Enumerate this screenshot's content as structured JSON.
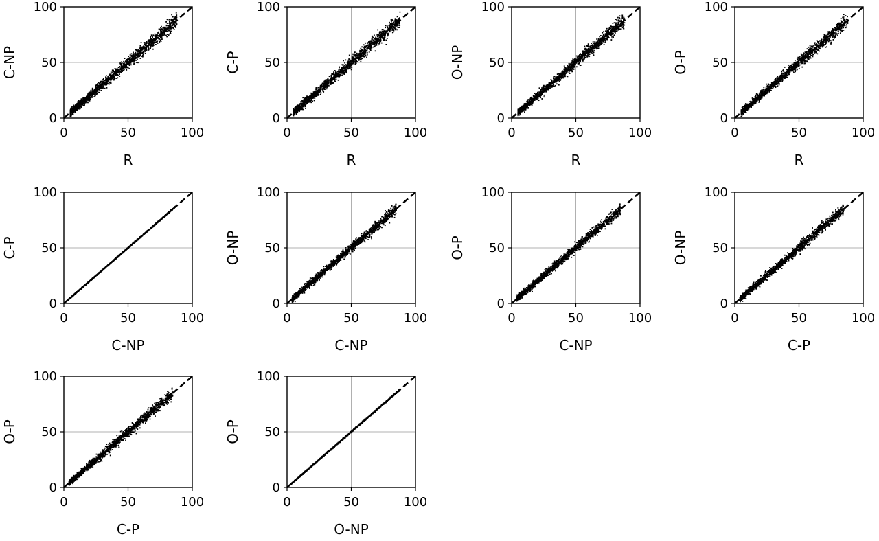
{
  "figure": {
    "colors": {
      "points": "#000000",
      "diagonal": "#000000",
      "grid": "#b0b0b0",
      "frame": "#000000",
      "background": "#ffffff"
    }
  },
  "chart_data": [
    {
      "type": "scatter",
      "xlabel": "R",
      "ylabel": "C-NP",
      "xlim": [
        0,
        100
      ],
      "ylim": [
        0,
        100
      ],
      "xticks": [
        "0",
        "50",
        "100"
      ],
      "yticks": [
        "0",
        "50",
        "100"
      ],
      "grid": true,
      "reference_line": "y = x (dashed)",
      "spread": 4.5,
      "n_points": 1500,
      "x_range": [
        5,
        88
      ]
    },
    {
      "type": "scatter",
      "xlabel": "R",
      "ylabel": "C-P",
      "xlim": [
        0,
        100
      ],
      "ylim": [
        0,
        100
      ],
      "xticks": [
        "0",
        "50",
        "100"
      ],
      "yticks": [
        "0",
        "50",
        "100"
      ],
      "grid": true,
      "reference_line": "y = x (dashed)",
      "spread": 4.5,
      "n_points": 1500,
      "x_range": [
        5,
        88
      ]
    },
    {
      "type": "scatter",
      "xlabel": "R",
      "ylabel": "O-NP",
      "xlim": [
        0,
        100
      ],
      "ylim": [
        0,
        100
      ],
      "xticks": [
        "0",
        "50",
        "100"
      ],
      "yticks": [
        "0",
        "50",
        "100"
      ],
      "grid": true,
      "reference_line": "y = x (dashed)",
      "spread": 4.0,
      "n_points": 1500,
      "x_range": [
        5,
        88
      ]
    },
    {
      "type": "scatter",
      "xlabel": "R",
      "ylabel": "O-P",
      "xlim": [
        0,
        100
      ],
      "ylim": [
        0,
        100
      ],
      "xticks": [
        "0",
        "50",
        "100"
      ],
      "yticks": [
        "0",
        "50",
        "100"
      ],
      "grid": true,
      "reference_line": "y = x (dashed)",
      "spread": 4.0,
      "n_points": 1500,
      "x_range": [
        5,
        88
      ]
    },
    {
      "type": "scatter",
      "xlabel": "C-NP",
      "ylabel": "C-P",
      "xlim": [
        0,
        100
      ],
      "ylim": [
        0,
        100
      ],
      "xticks": [
        "0",
        "50",
        "100"
      ],
      "yticks": [
        "0",
        "50",
        "100"
      ],
      "grid": true,
      "reference_line": "y = x (dashed)",
      "spread": 0.4,
      "n_points": 1200,
      "x_range": [
        3,
        88
      ]
    },
    {
      "type": "scatter",
      "xlabel": "C-NP",
      "ylabel": "O-NP",
      "xlim": [
        0,
        100
      ],
      "ylim": [
        0,
        100
      ],
      "xticks": [
        "0",
        "50",
        "100"
      ],
      "yticks": [
        "0",
        "50",
        "100"
      ],
      "grid": true,
      "reference_line": "y = x (dashed)",
      "spread": 3.5,
      "n_points": 1500,
      "x_range": [
        4,
        85
      ]
    },
    {
      "type": "scatter",
      "xlabel": "C-NP",
      "ylabel": "O-P",
      "xlim": [
        0,
        100
      ],
      "ylim": [
        0,
        100
      ],
      "xticks": [
        "0",
        "50",
        "100"
      ],
      "yticks": [
        "0",
        "50",
        "100"
      ],
      "grid": true,
      "reference_line": "y = x (dashed)",
      "spread": 3.5,
      "n_points": 1500,
      "x_range": [
        4,
        85
      ]
    },
    {
      "type": "scatter",
      "xlabel": "C-P",
      "ylabel": "O-NP",
      "xlim": [
        0,
        100
      ],
      "ylim": [
        0,
        100
      ],
      "xticks": [
        "0",
        "50",
        "100"
      ],
      "yticks": [
        "0",
        "50",
        "100"
      ],
      "grid": true,
      "reference_line": "y = x (dashed)",
      "spread": 3.5,
      "n_points": 1500,
      "x_range": [
        4,
        85
      ]
    },
    {
      "type": "scatter",
      "xlabel": "C-P",
      "ylabel": "O-P",
      "xlim": [
        0,
        100
      ],
      "ylim": [
        0,
        100
      ],
      "xticks": [
        "0",
        "50",
        "100"
      ],
      "yticks": [
        "0",
        "50",
        "100"
      ],
      "grid": true,
      "reference_line": "y = x (dashed)",
      "spread": 3.5,
      "n_points": 1500,
      "x_range": [
        4,
        85
      ]
    },
    {
      "type": "scatter",
      "xlabel": "O-NP",
      "ylabel": "O-P",
      "xlim": [
        0,
        100
      ],
      "ylim": [
        0,
        100
      ],
      "xticks": [
        "0",
        "50",
        "100"
      ],
      "yticks": [
        "0",
        "50",
        "100"
      ],
      "grid": true,
      "reference_line": "y = x (dashed)",
      "spread": 0.5,
      "n_points": 1200,
      "x_range": [
        3,
        88
      ]
    }
  ]
}
